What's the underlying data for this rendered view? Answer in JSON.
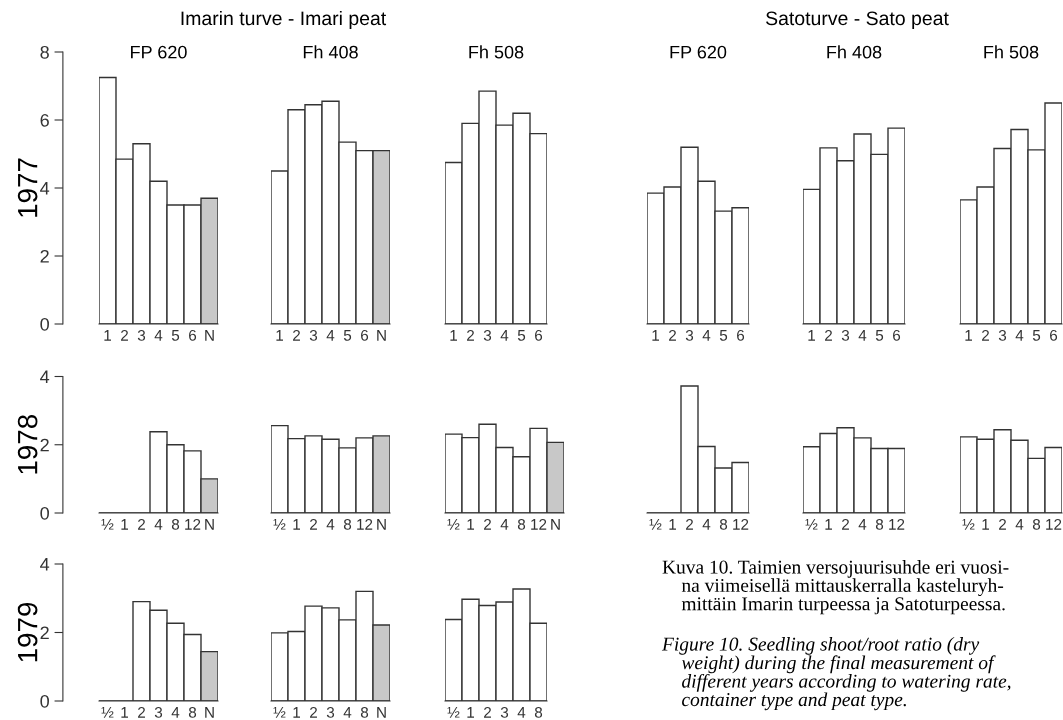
{
  "chart_data": [
    {
      "type": "bar",
      "title": "FP 620",
      "ylabel": "1977",
      "annotations": [
        "Imarin turve - Imari peat"
      ],
      "categories": [
        "1",
        "2",
        "3",
        "4",
        "5",
        "6",
        "N"
      ],
      "values": [
        7.25,
        4.85,
        5.3,
        4.2,
        3.5,
        3.5,
        3.7
      ],
      "colors": [
        "#ffffff",
        "#ffffff",
        "#ffffff",
        "#ffffff",
        "#ffffff",
        "#ffffff",
        "#c8c8c8"
      ],
      "ylim": [
        0,
        8
      ],
      "yticks": [
        0,
        2,
        4,
        6,
        8
      ]
    },
    {
      "type": "bar",
      "title": "Fh 408",
      "categories": [
        "1",
        "2",
        "3",
        "4",
        "5",
        "6",
        "N"
      ],
      "values": [
        4.5,
        6.3,
        6.45,
        6.55,
        5.35,
        5.1,
        5.1
      ],
      "colors": [
        "#ffffff",
        "#ffffff",
        "#ffffff",
        "#ffffff",
        "#ffffff",
        "#ffffff",
        "#c8c8c8"
      ],
      "ylim": [
        0,
        8
      ],
      "tick_labels": "x"
    },
    {
      "type": "bar",
      "title": "Fh 508",
      "categories": [
        "1",
        "2",
        "3",
        "4",
        "5",
        "6"
      ],
      "values": [
        4.75,
        5.9,
        6.85,
        5.85,
        6.2,
        5.6
      ],
      "colors": [
        "#ffffff",
        "#ffffff",
        "#ffffff",
        "#ffffff",
        "#ffffff",
        "#ffffff"
      ],
      "ylim": [
        0,
        8
      ],
      "tick_labels": "x"
    },
    {
      "type": "bar",
      "title": "FP 620",
      "annotations": [
        "Satoturve - Sato peat"
      ],
      "categories": [
        "1",
        "2",
        "3",
        "4",
        "5",
        "6"
      ],
      "values": [
        3.85,
        4.03,
        5.2,
        4.2,
        3.32,
        3.42
      ],
      "colors": [
        "#ffffff",
        "#ffffff",
        "#ffffff",
        "#ffffff",
        "#ffffff",
        "#ffffff"
      ],
      "ylim": [
        0,
        8
      ],
      "tick_labels": "x"
    },
    {
      "type": "bar",
      "title": "Fh 408",
      "categories": [
        "1",
        "2",
        "3",
        "4",
        "5",
        "6"
      ],
      "values": [
        3.96,
        5.18,
        4.8,
        5.59,
        4.99,
        5.76
      ],
      "colors": [
        "#ffffff",
        "#ffffff",
        "#ffffff",
        "#ffffff",
        "#ffffff",
        "#ffffff"
      ],
      "ylim": [
        0,
        8
      ],
      "tick_labels": "x"
    },
    {
      "type": "bar",
      "title": "Fh 508",
      "categories": [
        "1",
        "2",
        "3",
        "4",
        "5",
        "6"
      ],
      "values": [
        3.65,
        4.03,
        5.16,
        5.72,
        5.12,
        6.5
      ],
      "colors": [
        "#ffffff",
        "#ffffff",
        "#ffffff",
        "#ffffff",
        "#ffffff",
        "#ffffff"
      ],
      "ylim": [
        0,
        8
      ],
      "tick_labels": "x"
    },
    {
      "type": "bar",
      "ylabel": "1978",
      "categories": [
        "½",
        "1",
        "2",
        "4",
        "8",
        "12",
        "N"
      ],
      "values": [
        0,
        0,
        0,
        2.38,
        2.0,
        1.82,
        1.0
      ],
      "colors": [
        "#ffffff",
        "#ffffff",
        "#ffffff",
        "#ffffff",
        "#ffffff",
        "#ffffff",
        "#c8c8c8"
      ],
      "ylim": [
        0,
        4
      ],
      "yticks": [
        0,
        2,
        4
      ]
    },
    {
      "type": "bar",
      "categories": [
        "½",
        "1",
        "2",
        "4",
        "8",
        "12",
        "N"
      ],
      "values": [
        2.56,
        2.18,
        2.26,
        2.16,
        1.91,
        2.2,
        2.26
      ],
      "colors": [
        "#ffffff",
        "#ffffff",
        "#ffffff",
        "#ffffff",
        "#ffffff",
        "#ffffff",
        "#c8c8c8"
      ],
      "ylim": [
        0,
        4
      ],
      "tick_labels": "x"
    },
    {
      "type": "bar",
      "categories": [
        "½",
        "1",
        "2",
        "4",
        "8",
        "12",
        "N"
      ],
      "values": [
        2.31,
        2.21,
        2.6,
        1.92,
        1.65,
        2.48,
        2.07
      ],
      "colors": [
        "#ffffff",
        "#ffffff",
        "#ffffff",
        "#ffffff",
        "#ffffff",
        "#ffffff",
        "#c8c8c8"
      ],
      "ylim": [
        0,
        4
      ],
      "tick_labels": "x"
    },
    {
      "type": "bar",
      "categories": [
        "½",
        "1",
        "2",
        "4",
        "8",
        "12"
      ],
      "values": [
        0,
        0,
        3.72,
        1.95,
        1.32,
        1.48
      ],
      "colors": [
        "#ffffff",
        "#ffffff",
        "#ffffff",
        "#ffffff",
        "#ffffff",
        "#ffffff"
      ],
      "ylim": [
        0,
        4
      ],
      "tick_labels": "x"
    },
    {
      "type": "bar",
      "categories": [
        "½",
        "1",
        "2",
        "4",
        "8",
        "12"
      ],
      "values": [
        1.94,
        2.33,
        2.5,
        2.2,
        1.89,
        1.89
      ],
      "colors": [
        "#ffffff",
        "#ffffff",
        "#ffffff",
        "#ffffff",
        "#ffffff",
        "#ffffff"
      ],
      "ylim": [
        0,
        4
      ],
      "tick_labels": "x"
    },
    {
      "type": "bar",
      "categories": [
        "½",
        "1",
        "2",
        "4",
        "8",
        "12"
      ],
      "values": [
        2.23,
        2.16,
        2.44,
        2.13,
        1.6,
        1.92
      ],
      "colors": [
        "#ffffff",
        "#ffffff",
        "#ffffff",
        "#ffffff",
        "#ffffff",
        "#ffffff"
      ],
      "ylim": [
        0,
        4
      ],
      "tick_labels": "x"
    },
    {
      "type": "bar",
      "ylabel": "1979",
      "categories": [
        "½",
        "1",
        "2",
        "3",
        "4",
        "8",
        "N"
      ],
      "values": [
        0,
        0,
        2.9,
        2.65,
        2.27,
        1.94,
        1.44
      ],
      "colors": [
        "#ffffff",
        "#ffffff",
        "#ffffff",
        "#ffffff",
        "#ffffff",
        "#ffffff",
        "#c8c8c8"
      ],
      "ylim": [
        0,
        4
      ],
      "yticks": [
        0,
        2,
        4
      ]
    },
    {
      "type": "bar",
      "categories": [
        "½",
        "1",
        "2",
        "3",
        "4",
        "8",
        "N"
      ],
      "values": [
        1.99,
        2.03,
        2.77,
        2.72,
        2.37,
        3.2,
        2.22
      ],
      "colors": [
        "#ffffff",
        "#ffffff",
        "#ffffff",
        "#ffffff",
        "#ffffff",
        "#ffffff",
        "#c8c8c8"
      ],
      "ylim": [
        0,
        4
      ],
      "tick_labels": "x"
    },
    {
      "type": "bar",
      "annotations": [
        "Kuva 10. Taimien versojuurisuhde eri vuosi-\n    na viimeisellä mittauskerralla kasteluryh-\n    mittäin Imarin turpeessa ja Satoturpeessa.",
        "Figure 10. Seedling shoot/root ratio (dry\n    weight) during the final measurement of\n    different years according to watering rate,\n    container type and peat type."
      ],
      "categories": [
        "½",
        "1",
        "2",
        "3",
        "4",
        "8"
      ],
      "values": [
        2.38,
        2.97,
        2.79,
        2.89,
        3.27,
        2.27
      ],
      "colors": [
        "#ffffff",
        "#ffffff",
        "#ffffff",
        "#ffffff",
        "#ffffff",
        "#ffffff"
      ],
      "ylim": [
        0,
        4
      ],
      "tick_labels": "x"
    }
  ]
}
